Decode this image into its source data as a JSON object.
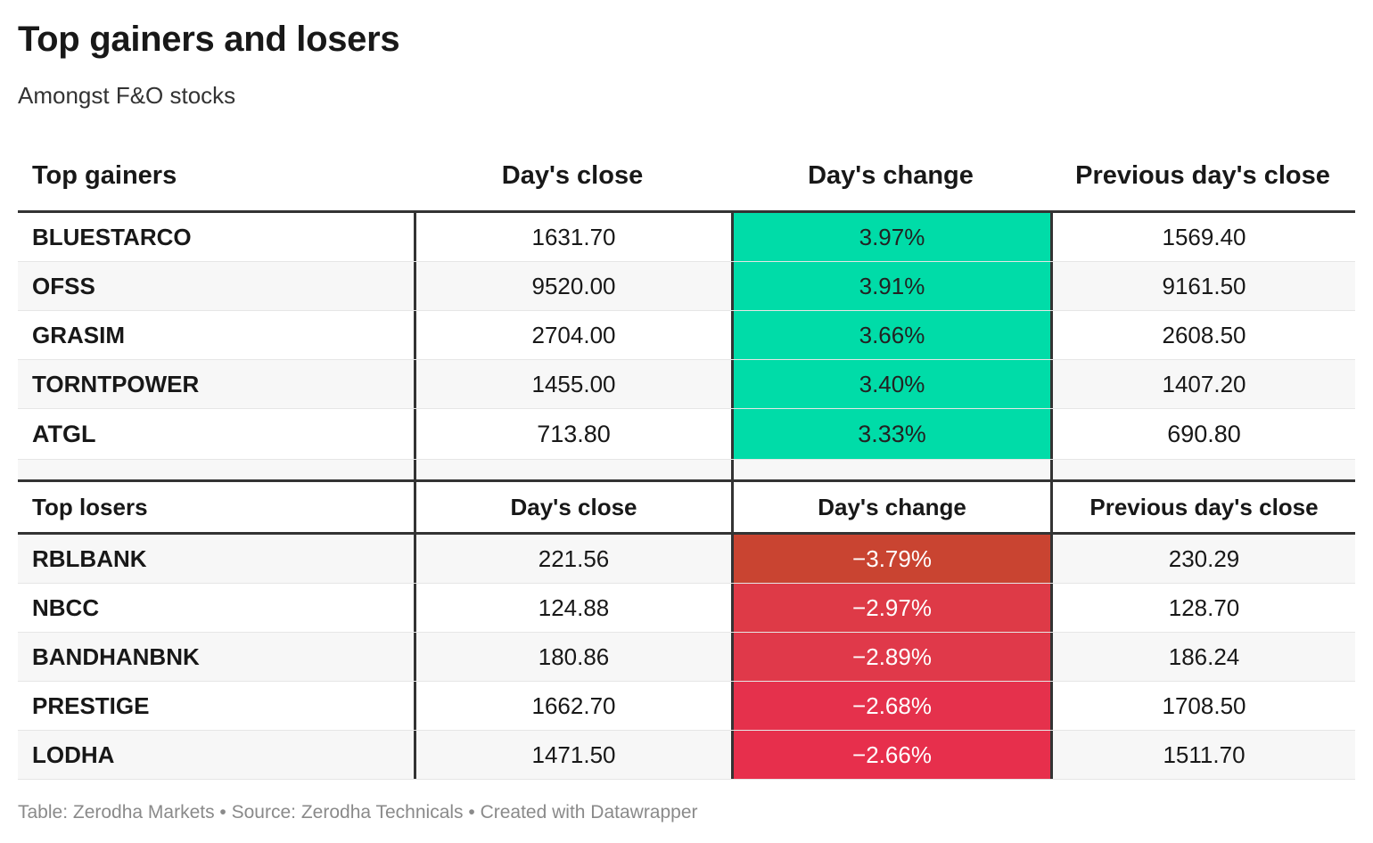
{
  "title": "Top gainers and losers",
  "subtitle": "Amongst F&O stocks",
  "footer": "Table: Zerodha Markets • Source: Zerodha Technicals • Created with Datawrapper",
  "colors": {
    "gain": "#00dca8",
    "loss_strong": "#c94431",
    "loss": "#e3384a",
    "border": "#333333"
  },
  "chart_data": {
    "type": "table",
    "sections": [
      {
        "headers": [
          "Top gainers",
          "Day's close",
          "Day's change",
          "Previous day's close"
        ],
        "rows": [
          {
            "stock": "BLUESTARCO",
            "close": "1631.70",
            "change": "3.97%",
            "prev": "1569.40"
          },
          {
            "stock": "OFSS",
            "close": "9520.00",
            "change": "3.91%",
            "prev": "9161.50"
          },
          {
            "stock": "GRASIM",
            "close": "2704.00",
            "change": "3.66%",
            "prev": "2608.50"
          },
          {
            "stock": "TORNTPOWER",
            "close": "1455.00",
            "change": "3.40%",
            "prev": "1407.20"
          },
          {
            "stock": "ATGL",
            "close": "713.80",
            "change": "3.33%",
            "prev": "690.80"
          }
        ]
      },
      {
        "headers": [
          "Top losers",
          "Day's close",
          "Day's change",
          "Previous day's close"
        ],
        "rows": [
          {
            "stock": "RBLBANK",
            "close": "221.56",
            "change": "−3.79%",
            "prev": "230.29",
            "color": "#c94431"
          },
          {
            "stock": "NBCC",
            "close": "124.88",
            "change": "−2.97%",
            "prev": "128.70",
            "color": "#de3a47"
          },
          {
            "stock": "BANDHANBNK",
            "close": "180.86",
            "change": "−2.89%",
            "prev": "186.24",
            "color": "#e0394a"
          },
          {
            "stock": "PRESTIGE",
            "close": "1662.70",
            "change": "−2.68%",
            "prev": "1708.50",
            "color": "#e5314c"
          },
          {
            "stock": "LODHA",
            "close": "1471.50",
            "change": "−2.66%",
            "prev": "1511.70",
            "color": "#e72f4c"
          }
        ]
      }
    ]
  }
}
